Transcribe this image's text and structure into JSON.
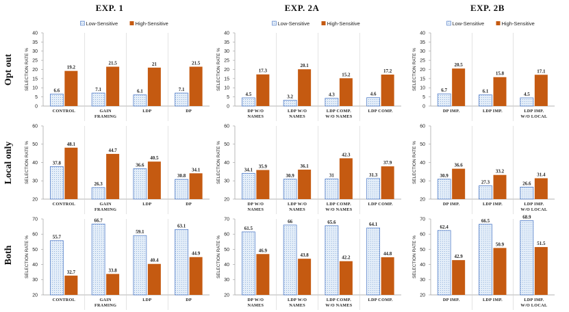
{
  "figure": {
    "legend": {
      "low": "Low-Sensitive",
      "high": "High-Sensitive"
    },
    "colors": {
      "low_fill": "#dce8f6",
      "low_stroke": "#4472c4",
      "high_fill": "#c55a11",
      "grid": "#d0d0d0",
      "axis": "#9a9a9a"
    }
  },
  "experiments": [
    {
      "title": "EXP. 1"
    },
    {
      "title": "EXP. 2A"
    },
    {
      "title": "EXP. 2B"
    }
  ],
  "rows": [
    {
      "label": "Opt out"
    },
    {
      "label": "Local only"
    },
    {
      "label": "Both"
    }
  ],
  "chart_data": [
    {
      "type": "bar",
      "experiment": "EXP. 1",
      "row": "Opt out",
      "ylabel": "SELECTION RATE %",
      "ylim": [
        0,
        40
      ],
      "yticks": [
        0,
        5,
        10,
        15,
        20,
        25,
        30,
        35,
        40
      ],
      "categories": [
        [
          "CONTROL"
        ],
        [
          "GAIN",
          "FRAMING"
        ],
        [
          "LDP"
        ],
        [
          "DP"
        ]
      ],
      "series": [
        {
          "name": "Low-Sensitive",
          "values": [
            6.6,
            7.1,
            6.1,
            7.1
          ]
        },
        {
          "name": "High-Sensitive",
          "values": [
            19.2,
            21.5,
            21,
            21.5
          ]
        }
      ]
    },
    {
      "type": "bar",
      "experiment": "EXP. 2A",
      "row": "Opt out",
      "ylabel": "SELECTION RATE %",
      "ylim": [
        0,
        40
      ],
      "yticks": [
        0,
        5,
        10,
        15,
        20,
        25,
        30,
        35,
        40
      ],
      "categories": [
        [
          "DP W/O",
          "NAMES"
        ],
        [
          "LDP W/O",
          "NAMES"
        ],
        [
          "LDP COMP.",
          "W/O NAMES"
        ],
        [
          "LDP COMP."
        ]
      ],
      "series": [
        {
          "name": "Low-Sensitive",
          "values": [
            4.5,
            3.2,
            4.3,
            4.6
          ]
        },
        {
          "name": "High-Sensitive",
          "values": [
            17.3,
            20.1,
            15.2,
            17.2
          ]
        }
      ]
    },
    {
      "type": "bar",
      "experiment": "EXP. 2B",
      "row": "Opt out",
      "ylabel": "SELECTION RATE %",
      "ylim": [
        0,
        40
      ],
      "yticks": [
        0,
        5,
        10,
        15,
        20,
        25,
        30,
        35,
        40
      ],
      "categories": [
        [
          "DP IMP."
        ],
        [
          "LDP IMP."
        ],
        [
          "LDP IMP.",
          "W/O LOCAL"
        ]
      ],
      "series": [
        {
          "name": "Low-Sensitive",
          "values": [
            6.7,
            6.1,
            4.5
          ]
        },
        {
          "name": "High-Sensitive",
          "values": [
            20.5,
            15.8,
            17.1
          ]
        }
      ]
    },
    {
      "type": "bar",
      "experiment": "EXP. 1",
      "row": "Local only",
      "ylabel": "SELECTION RATE %",
      "ylim": [
        20,
        60
      ],
      "yticks": [
        20,
        30,
        40,
        50,
        60
      ],
      "categories": [
        [
          "CONTROL"
        ],
        [
          "GAIN",
          "FRAMING"
        ],
        [
          "LDP"
        ],
        [
          "DP"
        ]
      ],
      "series": [
        {
          "name": "Low-Sensitive",
          "values": [
            37.8,
            26.3,
            36.6,
            30.8
          ]
        },
        {
          "name": "High-Sensitive",
          "values": [
            48.1,
            44.7,
            40.5,
            34.1
          ]
        }
      ]
    },
    {
      "type": "bar",
      "experiment": "EXP. 2A",
      "row": "Local only",
      "ylabel": "SELECTION RATE %",
      "ylim": [
        20,
        60
      ],
      "yticks": [
        20,
        30,
        40,
        50,
        60
      ],
      "categories": [
        [
          "DP W/O",
          "NAMES"
        ],
        [
          "LDP W/O",
          "NAMES"
        ],
        [
          "LDP COMP.",
          "W/O NAMES"
        ],
        [
          "LDP COMP."
        ]
      ],
      "series": [
        {
          "name": "Low-Sensitive",
          "values": [
            34.1,
            30.9,
            31,
            31.3
          ]
        },
        {
          "name": "High-Sensitive",
          "values": [
            35.9,
            36.1,
            42.3,
            37.9
          ]
        }
      ]
    },
    {
      "type": "bar",
      "experiment": "EXP. 2B",
      "row": "Local only",
      "ylabel": "SELECTION RATE %",
      "ylim": [
        20,
        60
      ],
      "yticks": [
        20,
        30,
        40,
        50,
        60
      ],
      "categories": [
        [
          "DP IMP."
        ],
        [
          "LDP IMP."
        ],
        [
          "LDP IMP.",
          "W/O LOCAL"
        ]
      ],
      "series": [
        {
          "name": "Low-Sensitive",
          "values": [
            30.9,
            27.3,
            26.6
          ]
        },
        {
          "name": "High-Sensitive",
          "values": [
            36.6,
            33.2,
            31.4
          ]
        }
      ]
    },
    {
      "type": "bar",
      "experiment": "EXP. 1",
      "row": "Both",
      "ylabel": "SELECTION RATE %",
      "ylim": [
        20,
        70
      ],
      "yticks": [
        20,
        30,
        40,
        50,
        60,
        70
      ],
      "categories": [
        [
          "CONTROL"
        ],
        [
          "GAIN",
          "FRAMING"
        ],
        [
          "LDP"
        ],
        [
          "DP"
        ]
      ],
      "series": [
        {
          "name": "Low-Sensitive",
          "values": [
            55.7,
            66.7,
            59.1,
            63.1
          ]
        },
        {
          "name": "High-Sensitive",
          "values": [
            32.7,
            33.8,
            40.4,
            44.9
          ]
        }
      ]
    },
    {
      "type": "bar",
      "experiment": "EXP. 2A",
      "row": "Both",
      "ylabel": "SELECTION RATE %",
      "ylim": [
        20,
        70
      ],
      "yticks": [
        20,
        30,
        40,
        50,
        60,
        70
      ],
      "categories": [
        [
          "DP W/O",
          "NAMES"
        ],
        [
          "LDP W/O",
          "NAMES"
        ],
        [
          "LDP COMP.",
          "W/O NAMES"
        ],
        [
          "LDP COMP."
        ]
      ],
      "series": [
        {
          "name": "Low-Sensitive",
          "values": [
            61.5,
            66,
            65.6,
            64.1
          ]
        },
        {
          "name": "High-Sensitive",
          "values": [
            46.9,
            43.8,
            42.2,
            44.8
          ]
        }
      ]
    },
    {
      "type": "bar",
      "experiment": "EXP. 2B",
      "row": "Both",
      "ylabel": "SELECTION RATE %",
      "ylim": [
        20,
        70
      ],
      "yticks": [
        20,
        30,
        40,
        50,
        60,
        70
      ],
      "categories": [
        [
          "DP IMP."
        ],
        [
          "LDP IMP."
        ],
        [
          "LDP IMP.",
          "W/O LOCAL"
        ]
      ],
      "series": [
        {
          "name": "Low-Sensitive",
          "values": [
            62.4,
            66.5,
            68.9
          ]
        },
        {
          "name": "High-Sensitive",
          "values": [
            42.9,
            50.9,
            51.5
          ]
        }
      ]
    }
  ]
}
